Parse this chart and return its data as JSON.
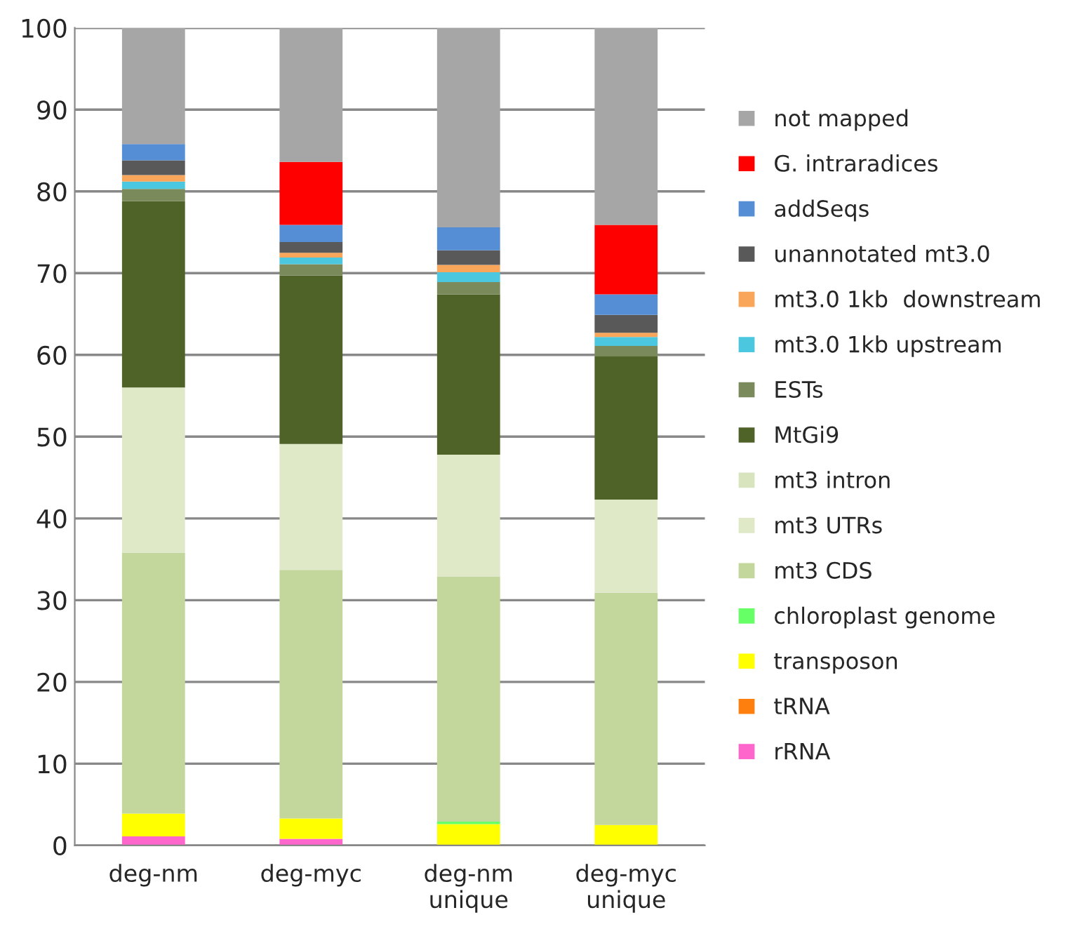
{
  "chart_data": {
    "type": "bar",
    "stacked": true,
    "categories": [
      "deg-nm",
      "deg-myc",
      "deg-nm\nunique",
      "deg-myc\nunique"
    ],
    "ylim": [
      0,
      100
    ],
    "yticks": [
      0,
      10,
      20,
      30,
      40,
      50,
      60,
      70,
      80,
      90,
      100
    ],
    "grid": "y",
    "legend": "right",
    "series": [
      {
        "name": "rRNA",
        "color": "#ff66cc",
        "values": [
          1.1,
          0.8,
          0,
          0
        ]
      },
      {
        "name": "tRNA",
        "color": "#ff7f0e",
        "values": [
          0,
          0,
          0,
          0
        ]
      },
      {
        "name": "transposon",
        "color": "#ffff00",
        "values": [
          2.8,
          2.5,
          2.6,
          2.5
        ]
      },
      {
        "name": "chloroplast genome",
        "color": "#66ff66",
        "values": [
          0,
          0,
          0.3,
          0
        ]
      },
      {
        "name": "mt3 CDS",
        "color": "#c3d69b",
        "values": [
          31.9,
          30.4,
          30.0,
          28.4
        ]
      },
      {
        "name": "mt3 UTRs",
        "color": "#dfe9c8",
        "values": [
          20.2,
          15.4,
          14.9,
          11.4
        ]
      },
      {
        "name": "mt3 intron",
        "color": "#d7e4bd",
        "values": [
          0,
          0,
          0,
          0
        ]
      },
      {
        "name": "MtGi9",
        "color": "#4f6228",
        "values": [
          22.8,
          20.6,
          19.6,
          17.5
        ]
      },
      {
        "name": "ESTs",
        "color": "#7a8a5a",
        "values": [
          1.5,
          1.4,
          1.5,
          1.3
        ]
      },
      {
        "name": "mt3.0 1kb upstream",
        "color": "#4bc8e0",
        "values": [
          0.9,
          0.8,
          1.2,
          1.1
        ]
      },
      {
        "name": "mt3.0 1kb  downstream",
        "color": "#f9a65a",
        "values": [
          0.8,
          0.6,
          0.9,
          0.5
        ]
      },
      {
        "name": "unannotated mt3.0",
        "color": "#595959",
        "values": [
          1.8,
          1.3,
          1.8,
          2.2
        ]
      },
      {
        "name": "addSeqs",
        "color": "#558ed5",
        "values": [
          2.0,
          2.1,
          2.8,
          2.5
        ]
      },
      {
        "name": "G. intraradices",
        "color": "#ff0000",
        "values": [
          0,
          7.7,
          0,
          8.5
        ]
      },
      {
        "name": "not mapped",
        "color": "#a6a6a6",
        "values": [
          14.2,
          16.4,
          24.4,
          24.1
        ]
      }
    ]
  }
}
